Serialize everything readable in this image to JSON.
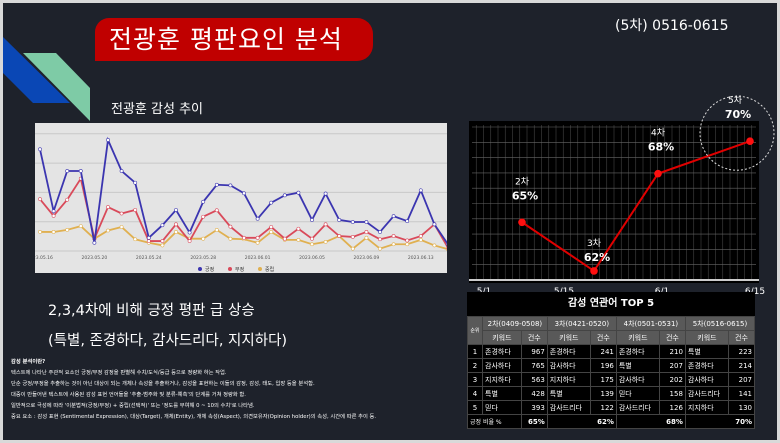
{
  "header": {
    "title": "전광훈 평판요인 분석",
    "period": "(5차) 0516-0615",
    "subtitle": "전광훈 감성 추이"
  },
  "colors": {
    "title_bg": "#c00000",
    "background": "#1e222b",
    "positive": "#3b35b0",
    "negative": "#d94a5a",
    "neutral": "#e0b050",
    "trend_line": "#e00000"
  },
  "chart_data": [
    {
      "type": "line",
      "x_ticks": [
        "2023.05.16",
        "2023.05.20",
        "2023.05.24",
        "2023.05.28",
        "2023.06.01",
        "2023.06.05",
        "2023.06.09",
        "2023.06.13"
      ],
      "x_start": "2023.05.16",
      "x_end": "2023.06.15",
      "grid": true,
      "legend_placement": "bottom",
      "series": [
        {
          "name": "긍정",
          "values": [
            347,
            136,
            273,
            273,
            28,
            379,
            273,
            233,
            45,
            88,
            140,
            63,
            168,
            226,
            224,
            197,
            110,
            165,
            190,
            199,
            106,
            196,
            106,
            99,
            99,
            65,
            119,
            102,
            207,
            91,
            23
          ]
        },
        {
          "name": "부정",
          "values": [
            177,
            120,
            175,
            247,
            42,
            150,
            128,
            140,
            34,
            34,
            91,
            34,
            117,
            139,
            83,
            45,
            45,
            82,
            42,
            76,
            42,
            91,
            51,
            48,
            65,
            40,
            51,
            36,
            51,
            91,
            11
          ]
        },
        {
          "name": "중립",
          "values": [
            65,
            65,
            72,
            85,
            42,
            70,
            82,
            40,
            28,
            19,
            65,
            42,
            42,
            72,
            42,
            40,
            28,
            65,
            38,
            38,
            23,
            31,
            51,
            8,
            45,
            8,
            23,
            23,
            38,
            19,
            6
          ]
        }
      ]
    },
    {
      "type": "line",
      "x_ticks": [
        "5/1",
        "5/15",
        "6/1",
        "6/15"
      ],
      "ylim": [
        61.5,
        71
      ],
      "grid": true,
      "points": [
        {
          "label": "2차",
          "x": "5/8",
          "value": 65,
          "text": "65%"
        },
        {
          "label": "3차",
          "x": "5/20",
          "value": 62,
          "text": "62%"
        },
        {
          "label": "4차",
          "x": "5/31",
          "value": 68,
          "text": "68%"
        },
        {
          "label": "5차",
          "x": "6/14",
          "value": 70,
          "text": "70%",
          "highlighted": true
        }
      ]
    }
  ],
  "main": {
    "headline": "2,3,4차에 비해 긍정 평판 급 상승",
    "headline2": "(특별, 존경하다, 감사드리다, 지지하다)"
  },
  "notes": [
    "감성 분석이란?",
    "텍스트에 나타난 주관적 요소인 긍정/부정 감정을 판별해 수치/도식/등급 등으로 정량화 하는 작업.",
    "단순 긍정/부정을 추출하는 것이 아닌 대상이 되는 개체나 속성을 추출하거나, 감성을 표현하는 이들의 감정, 감성, 태도, 입장 등을 분석함.",
    "대중이 만들어낸 텍스트에 사용된 감성 표현 언어들을 '추출-범주화 및 분류-예측'의 단계를 거쳐 정량화 함.",
    "일반적으로 극성에 따라 '이분법적(긍정/부정) + 중립(선택적)' 또는 '정도를 부여해 0 ~ 10의 수치'로 나타냄.",
    "중요 요소 : 감성 표현 (Sentimental Expression), 대상(Target), 개체(Entity), 개체 속성(Aspect), 의견보유자(Opinion holder)의 속성, 시간에 따른 추이 등."
  ],
  "table": {
    "title": "감성 연관어 TOP 5",
    "rank_header": "순위",
    "keyword_header": "키워드",
    "count_header": "건수",
    "periods": [
      "2차(0409-0508)",
      "3차(0421-0520)",
      "4차(0501-0531)",
      "5차(0516-0615)"
    ],
    "rows": [
      {
        "rank": "1",
        "cells": [
          [
            "존경하다",
            "967"
          ],
          [
            "존경하다",
            "241"
          ],
          [
            "존경하다",
            "210"
          ],
          [
            "특별",
            "223"
          ]
        ]
      },
      {
        "rank": "2",
        "cells": [
          [
            "감사하다",
            "765"
          ],
          [
            "감사하다",
            "196"
          ],
          [
            "특별",
            "207"
          ],
          [
            "존경하다",
            "214"
          ]
        ]
      },
      {
        "rank": "3",
        "cells": [
          [
            "지지하다",
            "563"
          ],
          [
            "지지하다",
            "175"
          ],
          [
            "감사하다",
            "202"
          ],
          [
            "감사하다",
            "207"
          ]
        ]
      },
      {
        "rank": "4",
        "cells": [
          [
            "특별",
            "428"
          ],
          [
            "특별",
            "139"
          ],
          [
            "믿다",
            "158"
          ],
          [
            "감사드리다",
            "141"
          ]
        ]
      },
      {
        "rank": "5",
        "cells": [
          [
            "믿다",
            "393"
          ],
          [
            "감사드리다",
            "122"
          ],
          [
            "감사드리다",
            "126"
          ],
          [
            "지지하다",
            "130"
          ]
        ]
      }
    ],
    "footer_label": "긍정 비율 %",
    "ratios": [
      "65%",
      "62%",
      "68%",
      "70%"
    ]
  }
}
